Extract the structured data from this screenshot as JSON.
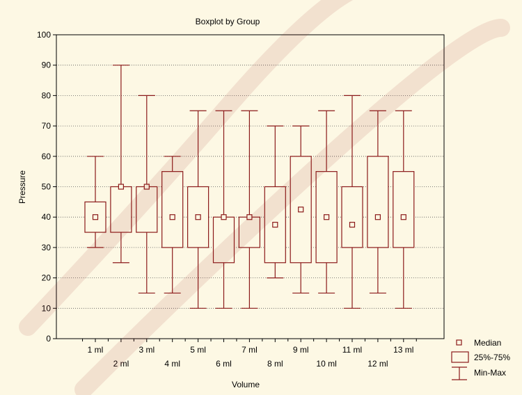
{
  "chart_data": {
    "type": "box",
    "title": "Boxplot by Group",
    "xlabel": "Volume",
    "ylabel": "Pressure",
    "ylim": [
      0,
      100
    ],
    "yticks": [
      0,
      10,
      20,
      30,
      40,
      50,
      60,
      70,
      80,
      90,
      100
    ],
    "grid": "horizontal",
    "legend_position": "bottom-right",
    "categories": [
      "1 ml",
      "2 ml",
      "3 ml",
      "4 ml",
      "5 ml",
      "6 ml",
      "7 ml",
      "8 ml",
      "9 ml",
      "10 ml",
      "11 ml",
      "12 ml",
      "13 ml"
    ],
    "boxes": [
      {
        "min": 30,
        "q1": 35,
        "median": 40,
        "q3": 45,
        "max": 60
      },
      {
        "min": 25,
        "q1": 35,
        "median": 50,
        "q3": 50,
        "max": 90
      },
      {
        "min": 15,
        "q1": 35,
        "median": 50,
        "q3": 50,
        "max": 80
      },
      {
        "min": 15,
        "q1": 30,
        "median": 40,
        "q3": 55,
        "max": 60
      },
      {
        "min": 10,
        "q1": 30,
        "median": 40,
        "q3": 50,
        "max": 75
      },
      {
        "min": 10,
        "q1": 25,
        "median": 40,
        "q3": 40,
        "max": 75
      },
      {
        "min": 10,
        "q1": 30,
        "median": 40,
        "q3": 40,
        "max": 75
      },
      {
        "min": 20,
        "q1": 25,
        "median": 37.5,
        "q3": 50,
        "max": 70
      },
      {
        "min": 15,
        "q1": 25,
        "median": 42.5,
        "q3": 60,
        "max": 70
      },
      {
        "min": 15,
        "q1": 25,
        "median": 40,
        "q3": 55,
        "max": 75
      },
      {
        "min": 10,
        "q1": 30,
        "median": 37.5,
        "q3": 50,
        "max": 80
      },
      {
        "min": 15,
        "q1": 30,
        "median": 40,
        "q3": 60,
        "max": 75
      },
      {
        "min": 10,
        "q1": 30,
        "median": 40,
        "q3": 55,
        "max": 75
      }
    ],
    "legend": [
      "Median",
      "25%-75%",
      "Min-Max"
    ],
    "color": "#8b1a1a"
  }
}
